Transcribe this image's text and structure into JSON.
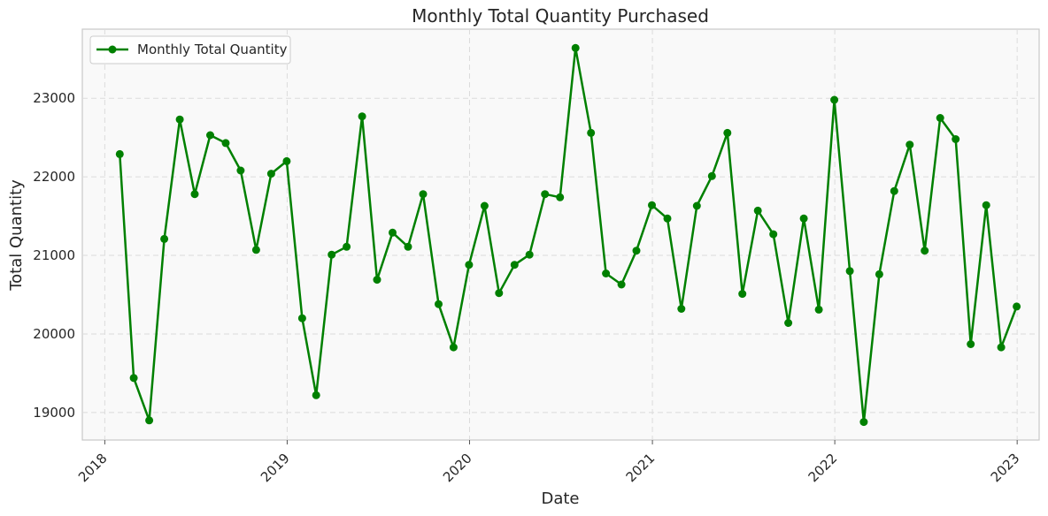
{
  "chart_data": {
    "type": "line",
    "title": "Monthly Total Quantity Purchased",
    "xlabel": "Date",
    "ylabel": "Total Quantity",
    "xlim": [
      "2017-11-17",
      "2023-02-14"
    ],
    "ylim": [
      18650,
      23880
    ],
    "x_ticks": [
      "2018-01-01",
      "2019-01-01",
      "2020-01-01",
      "2021-01-01",
      "2022-01-01",
      "2023-01-01"
    ],
    "x_tick_labels": [
      "2018",
      "2019",
      "2020",
      "2021",
      "2022",
      "2023"
    ],
    "y_ticks": [
      19000,
      20000,
      21000,
      22000,
      23000
    ],
    "y_tick_labels": [
      "19000",
      "20000",
      "21000",
      "22000",
      "23000"
    ],
    "grid": true,
    "legend_position": "top-left",
    "series": [
      {
        "name": "Monthly Total Quantity",
        "color": "#008000",
        "marker": "circle",
        "x": [
          "2018-01-31",
          "2018-02-28",
          "2018-03-31",
          "2018-04-30",
          "2018-05-31",
          "2018-06-30",
          "2018-07-31",
          "2018-08-31",
          "2018-09-30",
          "2018-10-31",
          "2018-11-30",
          "2018-12-31",
          "2019-01-31",
          "2019-02-28",
          "2019-03-31",
          "2019-04-30",
          "2019-05-31",
          "2019-06-30",
          "2019-07-31",
          "2019-08-31",
          "2019-09-30",
          "2019-10-31",
          "2019-11-30",
          "2019-12-31",
          "2020-01-31",
          "2020-02-29",
          "2020-03-31",
          "2020-04-30",
          "2020-05-31",
          "2020-06-30",
          "2020-07-31",
          "2020-08-31",
          "2020-09-30",
          "2020-10-31",
          "2020-11-30",
          "2020-12-31",
          "2021-01-31",
          "2021-02-28",
          "2021-03-31",
          "2021-04-30",
          "2021-05-31",
          "2021-06-30",
          "2021-07-31",
          "2021-08-31",
          "2021-09-30",
          "2021-10-31",
          "2021-11-30",
          "2021-12-31",
          "2022-01-31",
          "2022-02-28",
          "2022-03-31",
          "2022-04-30",
          "2022-05-31",
          "2022-06-30",
          "2022-07-31",
          "2022-08-31",
          "2022-09-30",
          "2022-10-31",
          "2022-11-30",
          "2022-12-31"
        ],
        "values": [
          22290,
          19440,
          18900,
          21210,
          22730,
          21780,
          22530,
          22430,
          22080,
          21070,
          22040,
          22200,
          20200,
          19220,
          21010,
          21110,
          22770,
          20690,
          21290,
          21110,
          21780,
          20380,
          19830,
          20880,
          21630,
          20520,
          20880,
          21010,
          21780,
          21740,
          23640,
          22560,
          20770,
          20630,
          21060,
          21640,
          21470,
          20320,
          21630,
          22010,
          22560,
          20510,
          21570,
          21270,
          20140,
          21470,
          20310,
          22980,
          20800,
          18880,
          20760,
          21820,
          22410,
          21060,
          22750,
          22480,
          19870,
          21640,
          19830,
          20350
        ]
      }
    ]
  }
}
